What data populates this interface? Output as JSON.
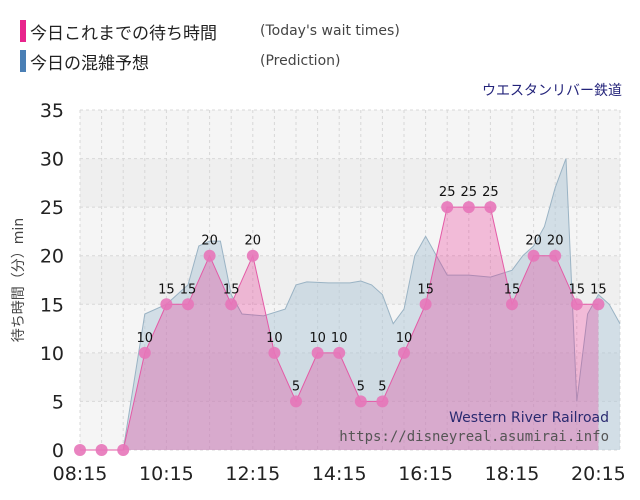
{
  "legend": {
    "actual": {
      "label": "今日これまでの待ち時間",
      "sublabel": "(Today's wait times)",
      "color": "#e8248c"
    },
    "prediction": {
      "label": "今日の混雑予想",
      "sublabel": "(Prediction)",
      "color": "#4a7fb5"
    }
  },
  "attraction_name": "ウエスタンリバー鉄道",
  "watermark": {
    "name": "Western River Railroad",
    "url": "https://disneyreal.asumirai.info"
  },
  "chart_data": {
    "type": "area",
    "ylabel": "待ち時間（分）min",
    "ylim": [
      0,
      35
    ],
    "yticks": [
      0,
      5,
      10,
      15,
      20,
      25,
      30,
      35
    ],
    "xlim": [
      "08:15",
      "20:45"
    ],
    "xticks": [
      "08:15",
      "10:15",
      "12:15",
      "14:15",
      "16:15",
      "18:15",
      "20:15"
    ],
    "grid": true,
    "series": [
      {
        "name": "今日の混雑予想",
        "color": "#4a7fb5",
        "points": [
          [
            "08:15",
            0
          ],
          [
            "08:45",
            0
          ],
          [
            "09:15",
            0
          ],
          [
            "09:45",
            14
          ],
          [
            "10:15",
            15
          ],
          [
            "10:45",
            17
          ],
          [
            "11:00",
            21
          ],
          [
            "11:15",
            21.5
          ],
          [
            "11:30",
            21.5
          ],
          [
            "11:45",
            16
          ],
          [
            "12:00",
            14
          ],
          [
            "12:30",
            13.8
          ],
          [
            "13:00",
            14.5
          ],
          [
            "13:15",
            17
          ],
          [
            "13:30",
            17.3
          ],
          [
            "14:00",
            17.2
          ],
          [
            "14:30",
            17.2
          ],
          [
            "14:45",
            17.4
          ],
          [
            "15:00",
            17
          ],
          [
            "15:15",
            16
          ],
          [
            "15:30",
            13
          ],
          [
            "15:45",
            14.5
          ],
          [
            "16:00",
            20
          ],
          [
            "16:15",
            22
          ],
          [
            "16:30",
            20
          ],
          [
            "16:45",
            18
          ],
          [
            "17:15",
            18
          ],
          [
            "17:45",
            17.8
          ],
          [
            "18:15",
            18.5
          ],
          [
            "18:30",
            20
          ],
          [
            "18:45",
            21
          ],
          [
            "19:00",
            23
          ],
          [
            "19:15",
            27
          ],
          [
            "19:30",
            30
          ],
          [
            "19:45",
            5
          ],
          [
            "20:00",
            14
          ],
          [
            "20:15",
            16
          ],
          [
            "20:30",
            15
          ],
          [
            "20:45",
            13
          ]
        ]
      },
      {
        "name": "今日これまでの待ち時間",
        "color": "#e8248c",
        "points": [
          [
            "08:15",
            0
          ],
          [
            "08:45",
            0
          ],
          [
            "09:15",
            0
          ],
          [
            "09:45",
            10
          ],
          [
            "10:15",
            15
          ],
          [
            "10:45",
            15
          ],
          [
            "11:15",
            20
          ],
          [
            "11:45",
            15
          ],
          [
            "12:15",
            20
          ],
          [
            "12:45",
            10
          ],
          [
            "13:15",
            5
          ],
          [
            "13:45",
            10
          ],
          [
            "14:15",
            10
          ],
          [
            "14:45",
            5
          ],
          [
            "15:15",
            5
          ],
          [
            "15:45",
            10
          ],
          [
            "16:15",
            15
          ],
          [
            "16:45",
            25
          ],
          [
            "17:15",
            25
          ],
          [
            "17:45",
            25
          ],
          [
            "18:15",
            15
          ],
          [
            "18:45",
            20
          ],
          [
            "19:15",
            20
          ],
          [
            "19:45",
            15
          ],
          [
            "20:15",
            15
          ]
        ],
        "labels": [
          "",
          "",
          "",
          "10",
          "15",
          "15",
          "20",
          "15",
          "20",
          "10",
          "5",
          "10",
          "10",
          "5",
          "5",
          "10",
          "15",
          "25",
          "25",
          "25",
          "15",
          "20",
          "20",
          "15",
          "15"
        ]
      }
    ]
  }
}
